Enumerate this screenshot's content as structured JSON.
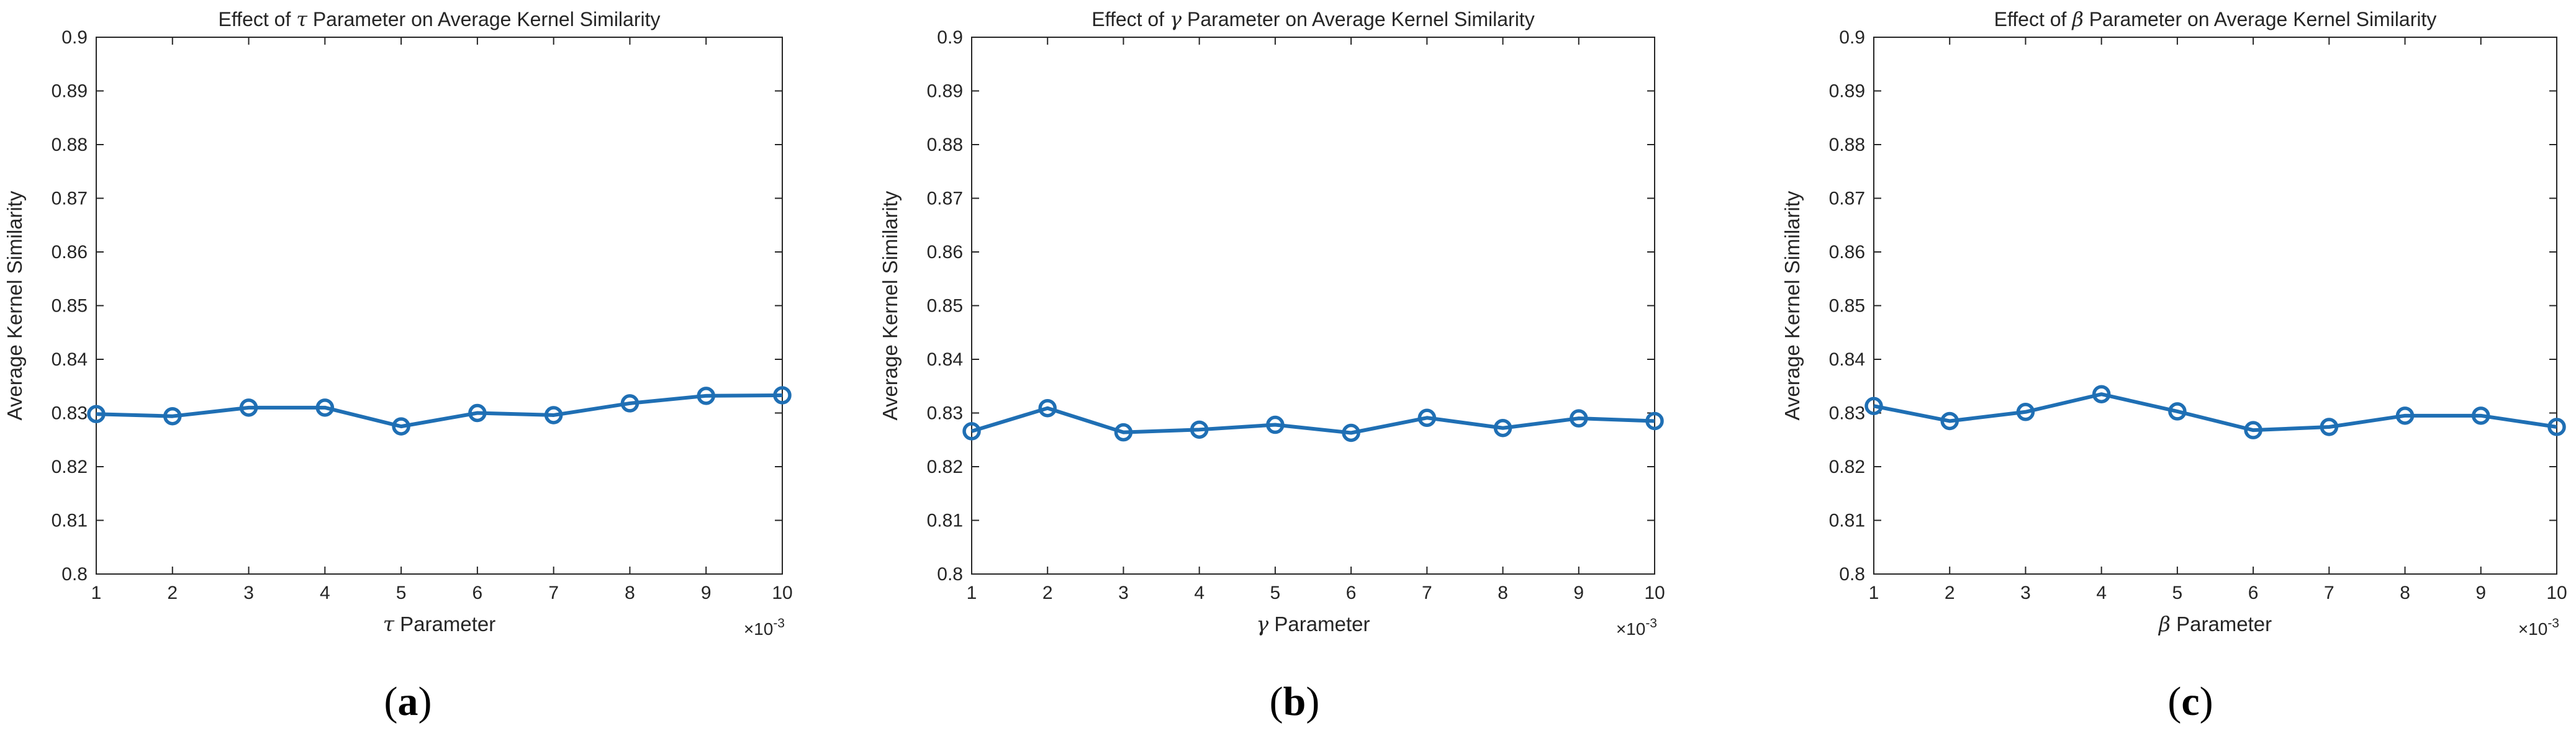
{
  "colors": {
    "series": "#1f6fb4",
    "axis": "#262626",
    "grid": "#dcdcdc",
    "background": "#ffffff"
  },
  "chart_data": [
    {
      "type": "line",
      "panel": "(a)",
      "panel_letter": "a",
      "title_prefix": "Effect of ",
      "param_symbol": "τ",
      "title_suffix": " Parameter on Average Kernel Similarity",
      "xlabel_suffix": " Parameter",
      "ylabel": "Average Kernel Similarity",
      "x": [
        1,
        2,
        3,
        4,
        5,
        6,
        7,
        8,
        9,
        10
      ],
      "x_multiplier": "×10",
      "x_multiplier_exponent": "-3",
      "x_tick_labels": [
        "1",
        "2",
        "3",
        "4",
        "5",
        "6",
        "7",
        "8",
        "9",
        "10"
      ],
      "y": [
        0.8298,
        0.8294,
        0.831,
        0.831,
        0.8275,
        0.83,
        0.8296,
        0.8318,
        0.8332,
        0.8333
      ],
      "xlim": [
        1,
        10
      ],
      "ylim": [
        0.8,
        0.9
      ],
      "y_tick_labels": [
        "0.8",
        "0.81",
        "0.82",
        "0.83",
        "0.84",
        "0.85",
        "0.86",
        "0.87",
        "0.88",
        "0.89",
        "0.9"
      ],
      "grid": true,
      "marker": "circle"
    },
    {
      "type": "line",
      "panel": "(b)",
      "panel_letter": "b",
      "title_prefix": "Effect of ",
      "param_symbol": "γ",
      "title_suffix": " Parameter on Average Kernel Similarity",
      "xlabel_suffix": " Parameter",
      "ylabel": "Average Kernel Similarity",
      "x": [
        1,
        2,
        3,
        4,
        5,
        6,
        7,
        8,
        9,
        10
      ],
      "x_multiplier": "×10",
      "x_multiplier_exponent": "-3",
      "x_tick_labels": [
        "1",
        "2",
        "3",
        "4",
        "5",
        "6",
        "7",
        "8",
        "9",
        "10"
      ],
      "y": [
        0.8266,
        0.8309,
        0.8264,
        0.8269,
        0.8278,
        0.8263,
        0.8291,
        0.8272,
        0.829,
        0.8285
      ],
      "xlim": [
        1,
        10
      ],
      "ylim": [
        0.8,
        0.9
      ],
      "y_tick_labels": [
        "0.8",
        "0.81",
        "0.82",
        "0.83",
        "0.84",
        "0.85",
        "0.86",
        "0.87",
        "0.88",
        "0.89",
        "0.9"
      ],
      "grid": true,
      "marker": "circle"
    },
    {
      "type": "line",
      "panel": "(c)",
      "panel_letter": "c",
      "title_prefix": "Effect of ",
      "param_symbol": "β",
      "title_suffix": " Parameter on Average Kernel Similarity",
      "xlabel_suffix": " Parameter",
      "ylabel": "Average Kernel Similarity",
      "x": [
        1,
        2,
        3,
        4,
        5,
        6,
        7,
        8,
        9,
        10
      ],
      "x_multiplier": "×10",
      "x_multiplier_exponent": "-3",
      "x_tick_labels": [
        "1",
        "2",
        "3",
        "4",
        "5",
        "6",
        "7",
        "8",
        "9",
        "10"
      ],
      "y": [
        0.8313,
        0.8285,
        0.8302,
        0.8335,
        0.8303,
        0.8268,
        0.8274,
        0.8295,
        0.8295,
        0.8274
      ],
      "xlim": [
        1,
        10
      ],
      "ylim": [
        0.8,
        0.9
      ],
      "y_tick_labels": [
        "0.8",
        "0.81",
        "0.82",
        "0.83",
        "0.84",
        "0.85",
        "0.86",
        "0.87",
        "0.88",
        "0.89",
        "0.9"
      ],
      "grid": true,
      "marker": "circle"
    }
  ]
}
